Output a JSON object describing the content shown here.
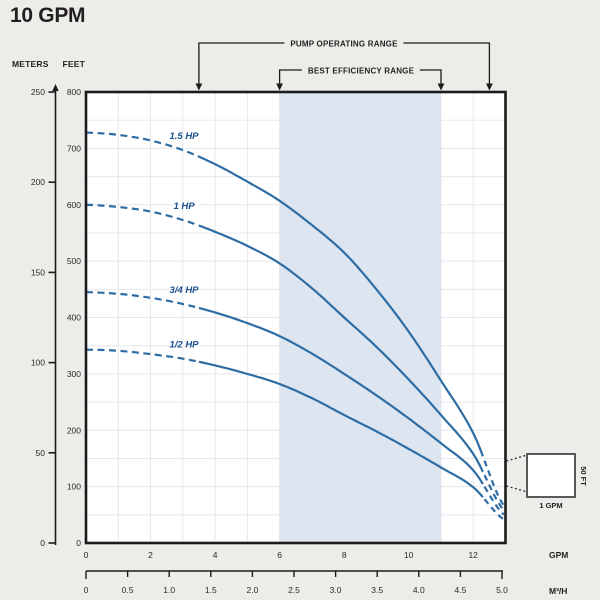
{
  "title": "10 GPM",
  "axis_headers": {
    "meters": "METERS",
    "feet": "FEET"
  },
  "annotations": {
    "pump_operating_range": "PUMP OPERATING RANGE",
    "best_efficiency_range": "BEST EFFICIENCY RANGE"
  },
  "units": {
    "flow_primary": "GPM",
    "flow_secondary": "M³/H"
  },
  "scale_box": {
    "width_label": "1 GPM",
    "height_label": "50 FT"
  },
  "colors": {
    "background": "#ecece9",
    "plot_background": "#ffffff",
    "curve": "#2e6da4",
    "curve_label": "#1a4f8f",
    "efficiency_band": "#d9e2ee",
    "gridline": "#e5e8ec",
    "axis": "#1b1b1b",
    "text": "#2a2a2a"
  },
  "chart_data": {
    "type": "line",
    "title": "10 GPM",
    "xlabel": "GPM",
    "xlabel_secondary": "M³/H",
    "ylabel_primary": "METERS",
    "ylabel_secondary": "FEET",
    "x_range_gpm": [
      0,
      13
    ],
    "m3h_range": [
      0,
      5
    ],
    "y_range_feet": [
      0,
      800
    ],
    "y_range_meters": [
      0,
      250
    ],
    "gpm_ticks": [
      0,
      2,
      4,
      6,
      8,
      10,
      12
    ],
    "m3h_ticks": [
      "0",
      "0.5",
      "1.0",
      "1.5",
      "2.0",
      "2.5",
      "3.0",
      "3.5",
      "4.0",
      "4.5",
      "5.0"
    ],
    "feet_ticks": [
      800,
      700,
      600,
      500,
      400,
      300,
      200,
      100,
      0
    ],
    "meters_ticks": [
      250,
      200,
      150,
      100,
      50,
      0
    ],
    "grid": {
      "x_step_gpm": 1,
      "y_step_feet": 50,
      "grid_on": true
    },
    "pump_operating_range_gpm": [
      3.5,
      12.5
    ],
    "best_efficiency_range_gpm": [
      6,
      11
    ],
    "curve_style": {
      "dashed_below_gpm": 3.5,
      "dashed_above_gpm": 12.35
    },
    "series": [
      {
        "name": "1.5 HP",
        "gpm": [
          0,
          1,
          2,
          3,
          4,
          5,
          6,
          7,
          8,
          9,
          10,
          11,
          12,
          13
        ],
        "head_ft": [
          728,
          724,
          714,
          697,
          672,
          641,
          607,
          564,
          515,
          450,
          375,
          288,
          195,
          62
        ]
      },
      {
        "name": "1 HP",
        "gpm": [
          0,
          1,
          2,
          3,
          4,
          5,
          6,
          7,
          8,
          9,
          10,
          11,
          12,
          13
        ],
        "head_ft": [
          600,
          596,
          588,
          573,
          552,
          527,
          496,
          452,
          400,
          348,
          290,
          227,
          158,
          55
        ]
      },
      {
        "name": "3/4 HP",
        "gpm": [
          0,
          1,
          2,
          3,
          4,
          5,
          6,
          7,
          8,
          9,
          10,
          11,
          12,
          13
        ],
        "head_ft": [
          445,
          442,
          435,
          424,
          409,
          390,
          367,
          336,
          300,
          262,
          221,
          177,
          129,
          48
        ]
      },
      {
        "name": "1/2 HP",
        "gpm": [
          0,
          1,
          2,
          3,
          4,
          5,
          6,
          7,
          8,
          9,
          10,
          11,
          12,
          13
        ],
        "head_ft": [
          343,
          341,
          335,
          327,
          315,
          300,
          282,
          257,
          227,
          198,
          167,
          134,
          99,
          40
        ]
      }
    ],
    "scale_box": {
      "width_label": "1 GPM",
      "height_label": "50 FT"
    }
  }
}
